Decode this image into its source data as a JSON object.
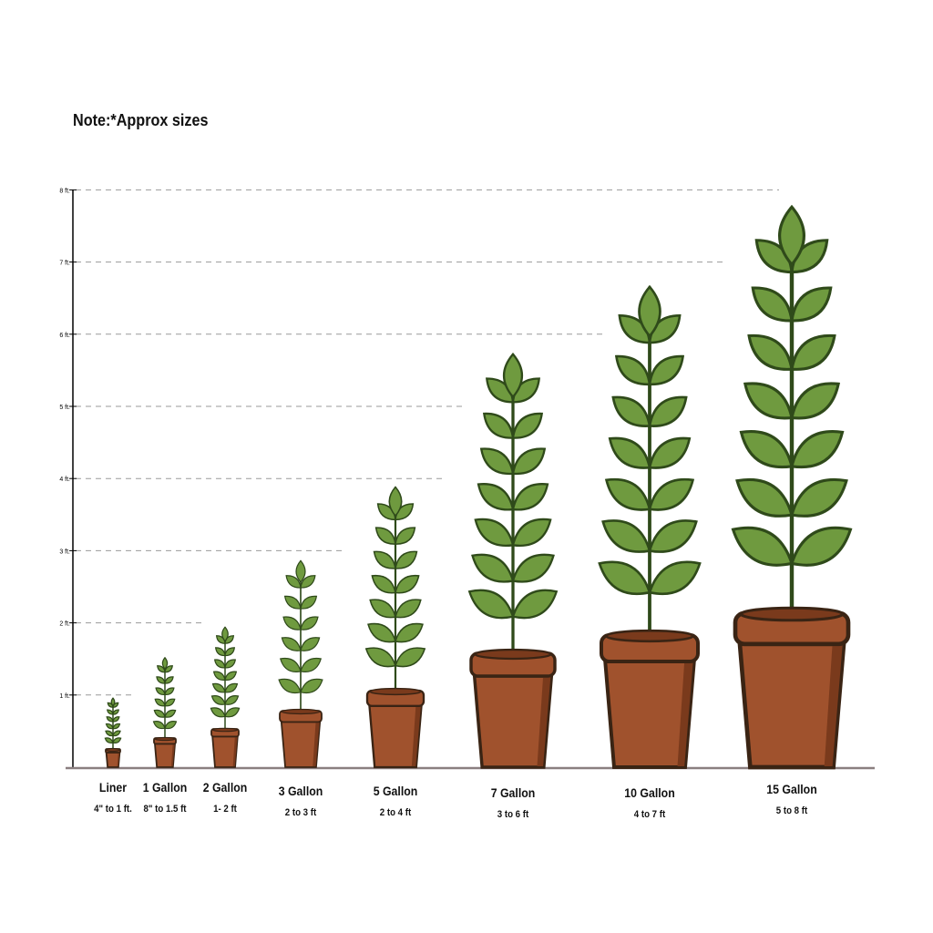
{
  "note": "Note:*Approx sizes",
  "axis": {
    "unit": "ft.",
    "ticks": [
      "1 ft.",
      "2 ft.",
      "3 ft.",
      "4 ft.",
      "5 ft.",
      "6 ft.",
      "7 ft.",
      "8 ft."
    ]
  },
  "colors": {
    "leaf": "#6f9a3f",
    "leaf_outline": "#2f4a1a",
    "pot": "#a0522d",
    "pot_dark": "#7a3a1c",
    "pot_outline": "#3a2414",
    "ground": "#8a7f80"
  },
  "plants": [
    {
      "name": "Liner",
      "range": "4\" to 1 ft."
    },
    {
      "name": "1 Gallon",
      "range": "8\" to 1.5 ft"
    },
    {
      "name": "2 Gallon",
      "range": "1- 2 ft"
    },
    {
      "name": "3 Gallon",
      "range": "2 to 3 ft"
    },
    {
      "name": "5 Gallon",
      "range": "2 to 4 ft"
    },
    {
      "name": "7 Gallon",
      "range": "3 to 6 ft"
    },
    {
      "name": "10 Gallon",
      "range": "4 to 7  ft"
    },
    {
      "name": "15 Gallon",
      "range": "5 to 8 ft"
    }
  ]
}
